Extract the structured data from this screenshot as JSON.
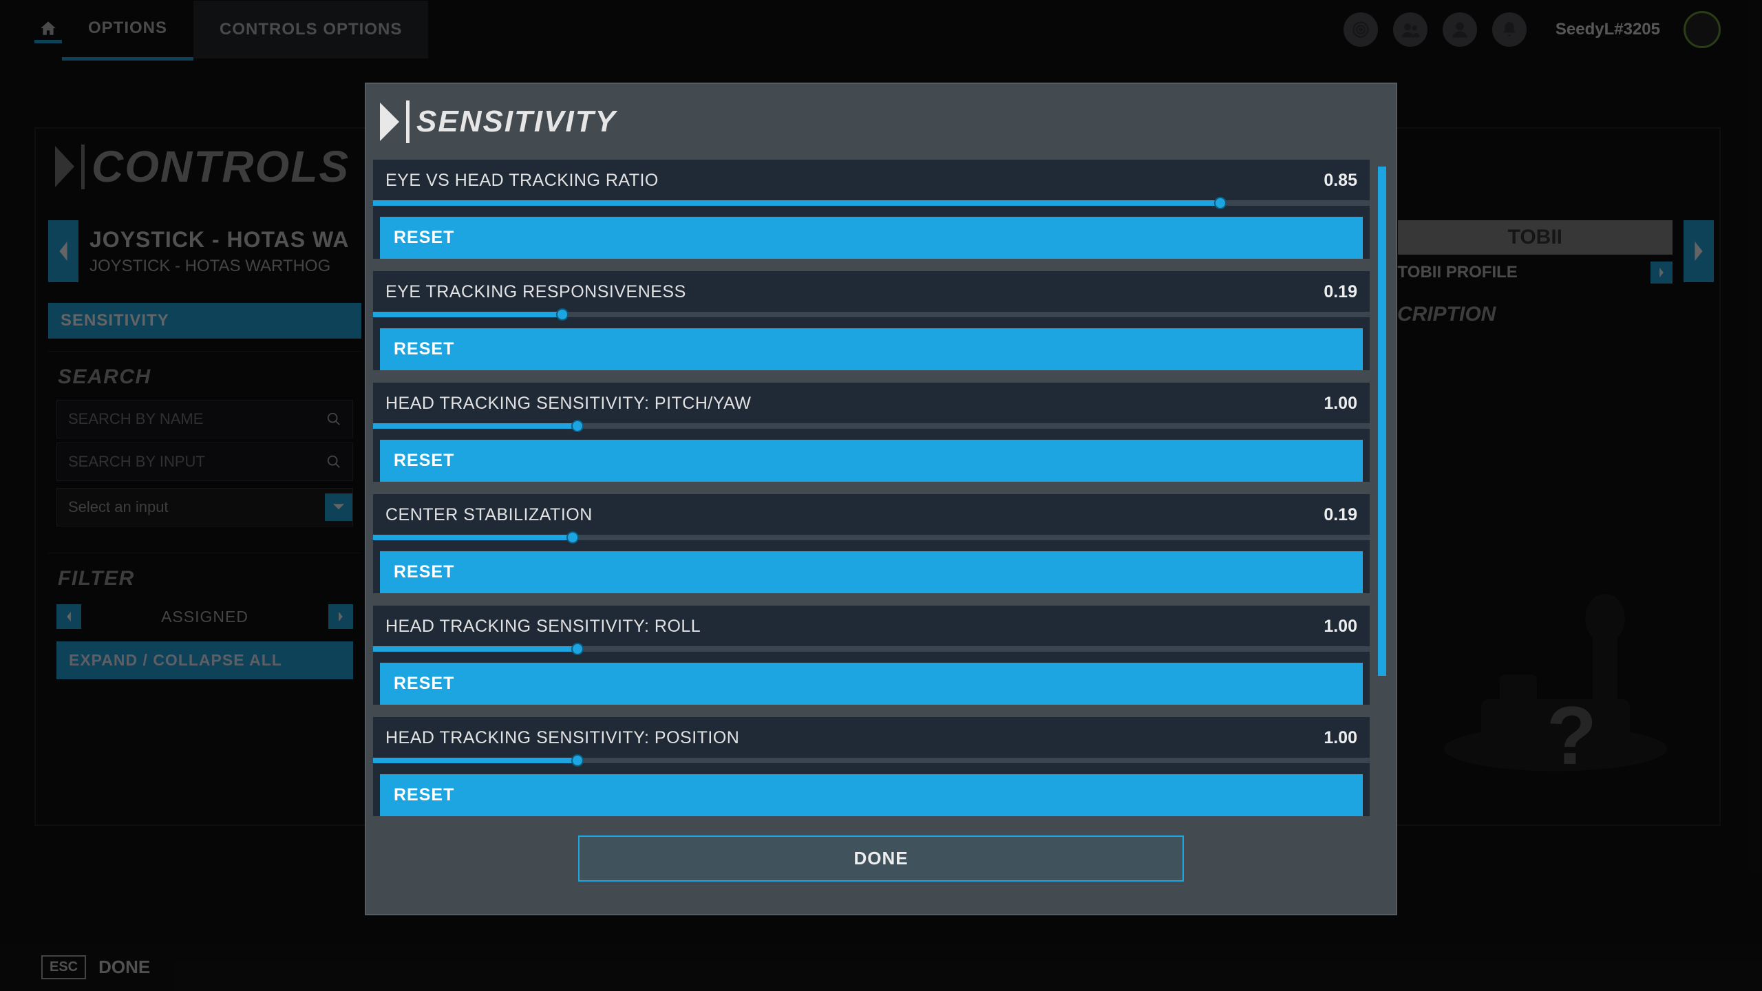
{
  "colors": {
    "accent": "#1ca5e0",
    "panel_dark": "#1f2a36",
    "modal_bg": "#444b50"
  },
  "nav": {
    "options": "OPTIONS",
    "controls_options": "CONTROLS OPTIONS"
  },
  "user": {
    "name": "SeedyL#3205"
  },
  "page_title": "CONTROLS O",
  "device": {
    "title": "JOYSTICK - HOTAS WA",
    "subtitle": "JOYSTICK - HOTAS WARTHOG"
  },
  "tobii": {
    "tab": "TOBII",
    "profile_label": "TOBII PROFILE"
  },
  "sidebar": {
    "sensitivity": "SENSITIVITY",
    "search_title": "SEARCH",
    "search_name_ph": "SEARCH BY NAME",
    "search_input_ph": "SEARCH BY INPUT",
    "select_ph": "Select an input",
    "filter_title": "FILTER",
    "filter_value": "ASSIGNED",
    "expand": "EXPAND / COLLAPSE ALL"
  },
  "desc_title": "SCRIPTION",
  "footer": {
    "esc": "ESC",
    "done": "DONE"
  },
  "modal": {
    "title": "SENSITIVITY",
    "reset": "RESET",
    "done": "DONE",
    "sliders": [
      {
        "label": "EYE VS HEAD TRACKING RATIO",
        "value": "0.85",
        "pct": 85
      },
      {
        "label": "EYE TRACKING RESPONSIVENESS",
        "value": "0.19",
        "pct": 19
      },
      {
        "label": "HEAD TRACKING SENSITIVITY: PITCH/YAW",
        "value": "1.00",
        "pct": 20.5
      },
      {
        "label": "CENTER STABILIZATION",
        "value": "0.19",
        "pct": 20
      },
      {
        "label": "HEAD TRACKING SENSITIVITY: ROLL",
        "value": "1.00",
        "pct": 20.5
      },
      {
        "label": "HEAD TRACKING SENSITIVITY: POSITION",
        "value": "1.00",
        "pct": 20.5
      }
    ]
  }
}
